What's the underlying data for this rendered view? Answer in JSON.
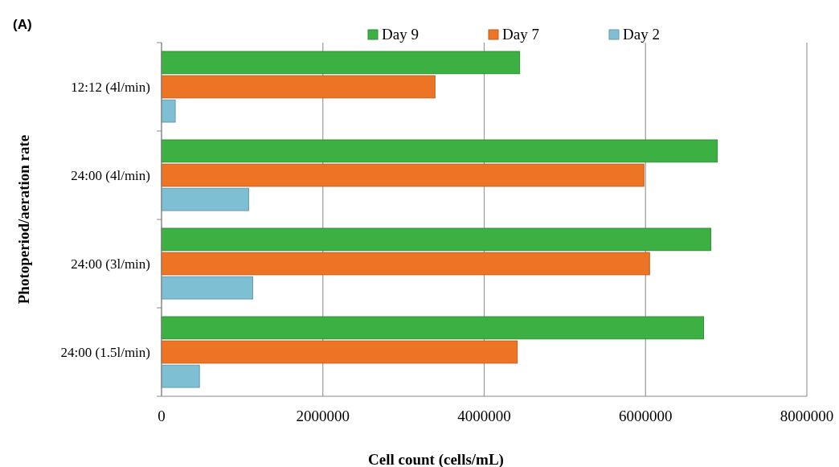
{
  "chart_data": {
    "type": "bar",
    "orientation": "horizontal",
    "xlabel": "Cell count (cells/mL)",
    "ylabel": "Photoperiod/aeration rate",
    "annotations": [
      "(A)"
    ],
    "categories": [
      "12:12 (4l/min)",
      "24:00 (4l/min)",
      "24:00 (3l/min)",
      "24:00 (1.5l/min)"
    ],
    "series": [
      {
        "name": "Day 9",
        "color": "#3cb043",
        "values": [
          4440000,
          6890000,
          6810000,
          6720000
        ]
      },
      {
        "name": "Day 7",
        "color": "#ec7424",
        "values": [
          3390000,
          5980000,
          6050000,
          4410000
        ]
      },
      {
        "name": "Day 2",
        "color": "#7fbfd4",
        "values": [
          170000,
          1080000,
          1130000,
          470000
        ]
      }
    ],
    "xlim": [
      0,
      8000000
    ],
    "xticks": [
      0,
      2000000,
      4000000,
      6000000,
      8000000
    ],
    "grid": "x",
    "legend": "top"
  }
}
